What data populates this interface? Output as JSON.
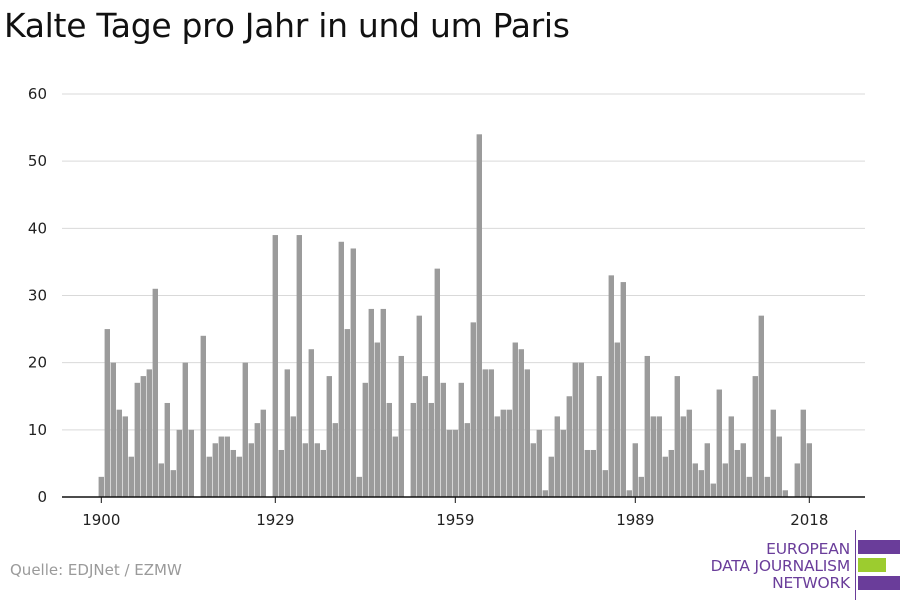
{
  "chart_data": {
    "type": "bar",
    "title": "Kalte Tage pro Jahr in und um Paris",
    "xlabel": "",
    "ylabel": "",
    "ylim": [
      0,
      60
    ],
    "yticks": [
      0,
      10,
      20,
      30,
      40,
      50,
      60
    ],
    "xtick_labels": [
      "1900",
      "1929",
      "1959",
      "1989",
      "2018"
    ],
    "grid": true,
    "bar_color": "#9b9b9b",
    "series": [
      {
        "x": [
          1900,
          1901,
          1902,
          1903,
          1904,
          1905,
          1906,
          1907,
          1908,
          1909,
          1910,
          1911,
          1912,
          1913,
          1914,
          1915,
          1916,
          1917,
          1918,
          1919,
          1920,
          1921,
          1922,
          1923,
          1924,
          1925,
          1926,
          1927,
          1928,
          1929,
          1930,
          1931,
          1932,
          1933,
          1934,
          1935,
          1936,
          1937,
          1938,
          1939,
          1940,
          1941,
          1942,
          1943,
          1944,
          1945,
          1946,
          1947,
          1948,
          1949,
          1950,
          1951,
          1952,
          1953,
          1954,
          1955,
          1956,
          1957,
          1958,
          1959,
          1960,
          1961,
          1962,
          1963,
          1964,
          1965,
          1966,
          1967,
          1968,
          1969,
          1970,
          1971,
          1972,
          1973,
          1974,
          1975,
          1976,
          1977,
          1978,
          1979,
          1980,
          1981,
          1982,
          1983,
          1984,
          1985,
          1986,
          1987,
          1988,
          1989,
          1990,
          1991,
          1992,
          1993,
          1994,
          1995,
          1996,
          1997,
          1998,
          1999,
          2000,
          2001,
          2002,
          2003,
          2004,
          2005,
          2006,
          2007,
          2008,
          2009,
          2010,
          2011,
          2012,
          2013,
          2014,
          2015,
          2016,
          2017,
          2018
        ],
        "values": [
          3,
          25,
          20,
          13,
          12,
          6,
          17,
          18,
          19,
          31,
          5,
          14,
          4,
          10,
          20,
          10,
          0,
          24,
          6,
          8,
          9,
          9,
          7,
          6,
          20,
          8,
          11,
          13,
          0,
          39,
          7,
          19,
          12,
          39,
          8,
          22,
          8,
          7,
          18,
          11,
          38,
          25,
          37,
          3,
          17,
          28,
          23,
          28,
          14,
          9,
          21,
          0,
          14,
          27,
          18,
          14,
          34,
          17,
          10,
          10,
          17,
          11,
          26,
          54,
          19,
          19,
          12,
          13,
          13,
          23,
          22,
          19,
          8,
          10,
          1,
          6,
          12,
          10,
          15,
          20,
          20,
          7,
          7,
          18,
          4,
          33,
          23,
          32,
          1,
          8,
          3,
          21,
          12,
          12,
          6,
          7,
          18,
          12,
          13,
          5,
          4,
          8,
          2,
          16,
          5,
          12,
          7,
          8,
          3,
          18,
          27,
          3,
          13,
          9,
          1,
          0,
          5,
          13,
          8
        ]
      }
    ]
  },
  "source": "Quelle: EDJNet / EZMW",
  "logo": {
    "line1": "EUROPEAN",
    "line2": "DATA JOURNALISM",
    "line3": "NETWORK",
    "purple": "#6a3d9a",
    "green": "#9ccc2f"
  }
}
